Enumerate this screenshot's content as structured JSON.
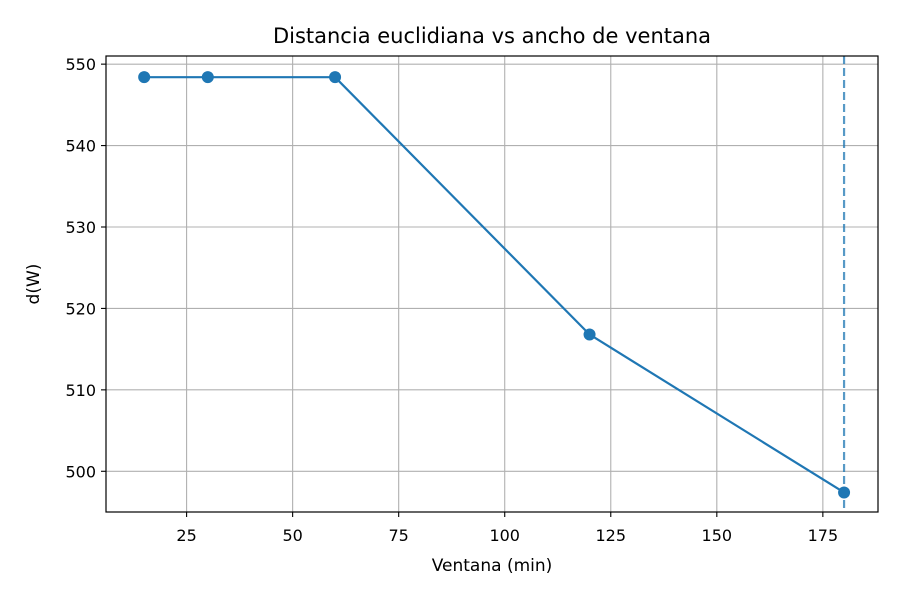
{
  "chart_data": {
    "type": "line",
    "title": "Distancia euclidiana vs ancho de ventana",
    "xlabel": "Ventana (min)",
    "ylabel": "d(W)",
    "xlim": [
      6,
      188
    ],
    "ylim": [
      495,
      551
    ],
    "xticks": [
      25,
      50,
      75,
      100,
      125,
      150,
      175
    ],
    "yticks": [
      500,
      510,
      520,
      530,
      540,
      550
    ],
    "grid": true,
    "colors": {
      "line": "#1f77b4",
      "grid": "#b0b0b0",
      "vline": "#1f77b4"
    },
    "series": [
      {
        "x": [
          15,
          30,
          60,
          120,
          180
        ],
        "values": [
          548.4,
          548.4,
          548.4,
          516.8,
          497.4
        ]
      }
    ],
    "vline": {
      "x": 180,
      "style": "dashed"
    }
  }
}
